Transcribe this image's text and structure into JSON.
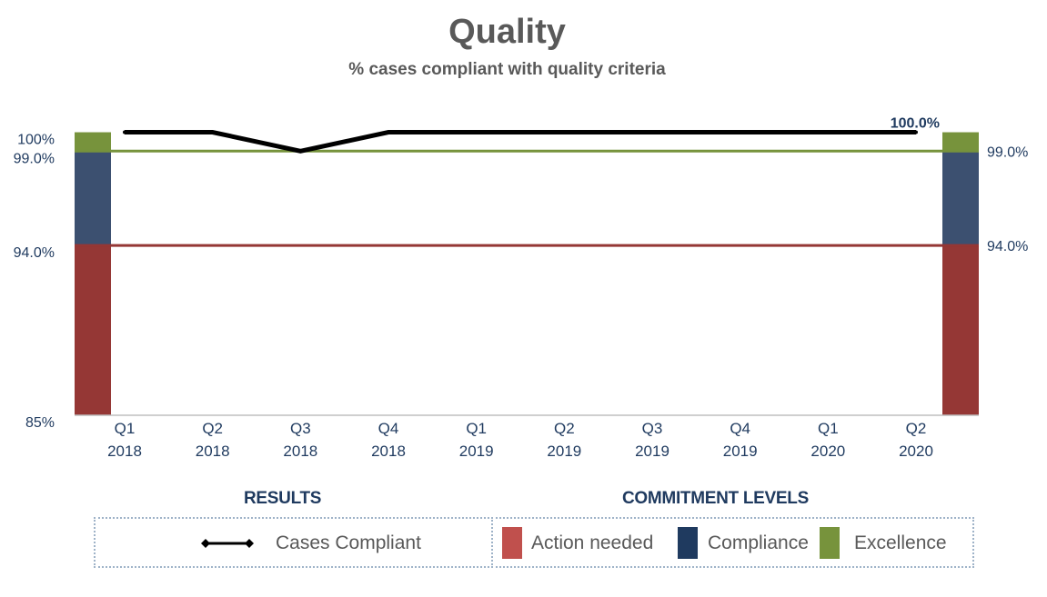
{
  "chart_data": {
    "type": "line",
    "title": "Quality",
    "subtitle": "% cases compliant with quality criteria",
    "categories": [
      "Q1 2018",
      "Q2 2018",
      "Q3 2018",
      "Q4 2018",
      "Q1 2019",
      "Q2 2019",
      "Q3 2019",
      "Q4 2019",
      "Q1 2020",
      "Q2 2020"
    ],
    "category_lines": [
      [
        "Q1",
        "2018"
      ],
      [
        "Q2",
        "2018"
      ],
      [
        "Q3",
        "2018"
      ],
      [
        "Q4",
        "2018"
      ],
      [
        "Q1",
        "2019"
      ],
      [
        "Q2",
        "2019"
      ],
      [
        "Q3",
        "2019"
      ],
      [
        "Q4",
        "2019"
      ],
      [
        "Q1",
        "2020"
      ],
      [
        "Q2",
        "2020"
      ]
    ],
    "series": [
      {
        "name": "Cases Compliant",
        "values": [
          100.0,
          100.0,
          99.0,
          100.0,
          100.0,
          100.0,
          100.0,
          100.0,
          100.0,
          100.0
        ],
        "color": "#000000"
      }
    ],
    "last_point_label": "100.0%",
    "ylim": [
      85,
      100.7
    ],
    "left_axis_ticks": [
      {
        "value": 100,
        "label": "100%"
      },
      {
        "value": 99,
        "label": "99.0%"
      },
      {
        "value": 94,
        "label": "94.0%"
      },
      {
        "value": 85,
        "label": "85%"
      }
    ],
    "right_axis_ticks": [
      {
        "value": 99,
        "label": "99.0%"
      },
      {
        "value": 94,
        "label": "94.0%"
      }
    ],
    "thresholds": [
      {
        "name": "Excellence",
        "value": 99,
        "color": "#77933c"
      },
      {
        "name": "Action needed",
        "value": 94,
        "color": "#953735"
      }
    ],
    "bands": [
      {
        "name": "Action needed",
        "from": 85,
        "to": 94,
        "color": "#953735"
      },
      {
        "name": "Compliance",
        "from": 94,
        "to": 99,
        "color": "#3c5070"
      },
      {
        "name": "Excellence",
        "from": 99,
        "to": 100,
        "color": "#77933c"
      }
    ],
    "grid": false
  },
  "legend": {
    "results_heading": "RESULTS",
    "commitment_heading": "COMMITMENT LEVELS",
    "cases_compliant": "Cases Compliant",
    "action_needed": "Action needed",
    "compliance": "Compliance",
    "excellence": "Excellence",
    "colors": {
      "action_needed": "#c0504d",
      "compliance": "#1f3a5f",
      "excellence": "#77933c"
    }
  }
}
